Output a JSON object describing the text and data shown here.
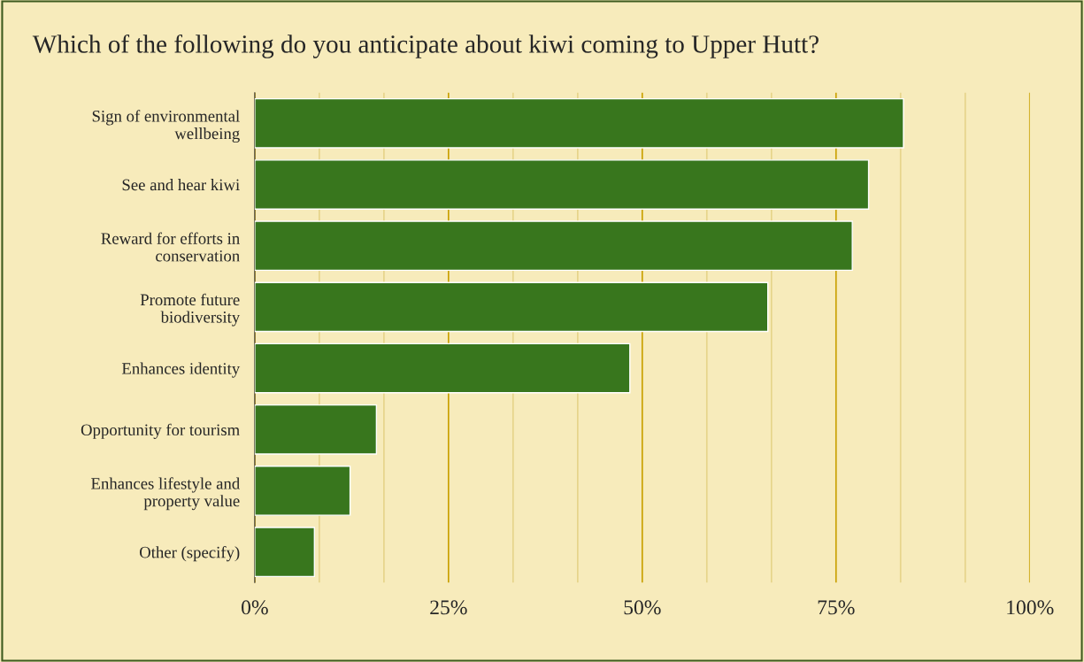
{
  "chart_data": {
    "type": "bar",
    "orientation": "horizontal",
    "title": "Which of the following do you anticipate about kiwi coming to Upper Hutt?",
    "categories": [
      "Sign of environmental\nwellbeing",
      "See and hear kiwi",
      "Reward for efforts in\nconservation",
      "Promote future\nbiodiversity",
      "Enhances identity",
      "Opportunity for tourism",
      "Enhances lifestyle and\nproperty value",
      "Other (specify)"
    ],
    "values": [
      83.7,
      79.2,
      77.1,
      66.2,
      48.4,
      15.7,
      12.3,
      7.7
    ],
    "color": "#38761d",
    "xlim": [
      0,
      100
    ],
    "xticks": [
      {
        "value": 0,
        "label": "0%"
      },
      {
        "value": 8.33,
        "label": null
      },
      {
        "value": 16.67,
        "label": null
      },
      {
        "value": 25,
        "label": "25%"
      },
      {
        "value": 33.33,
        "label": null
      },
      {
        "value": 41.67,
        "label": null
      },
      {
        "value": 50,
        "label": "50%"
      },
      {
        "value": 58.33,
        "label": null
      },
      {
        "value": 66.67,
        "label": null
      },
      {
        "value": 75,
        "label": "75%"
      },
      {
        "value": 83.33,
        "label": null
      },
      {
        "value": 91.67,
        "label": null
      },
      {
        "value": 100,
        "label": "100%"
      }
    ],
    "grid": "x"
  }
}
